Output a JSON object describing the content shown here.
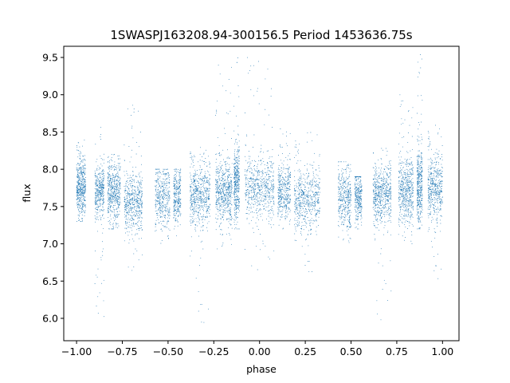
{
  "chart_data": {
    "type": "scatter",
    "title": "1SWASPJ163208.94-300156.5 Period 1453636.75s",
    "xlabel": "phase",
    "ylabel": "flux",
    "xlim": [
      -1.07,
      1.09
    ],
    "ylim": [
      5.7,
      9.65
    ],
    "xticks": [
      -1.0,
      -0.75,
      -0.5,
      -0.25,
      0.0,
      0.25,
      0.5,
      0.75,
      1.0
    ],
    "xtick_labels": [
      "−1.00",
      "−0.75",
      "−0.50",
      "−0.25",
      "0.00",
      "0.25",
      "0.50",
      "0.75",
      "1.00"
    ],
    "yticks": [
      6.0,
      6.5,
      7.0,
      7.5,
      8.0,
      8.5,
      9.0,
      9.5
    ],
    "ytick_labels": [
      "6.0",
      "6.5",
      "7.0",
      "7.5",
      "8.0",
      "8.5",
      "9.0",
      "9.5"
    ],
    "grid": false,
    "marker_color": "#1f77b4",
    "series": [
      {
        "clusters": [
          {
            "x": [
              -1.0,
              -0.95
            ],
            "center": 7.75,
            "spread": 0.18,
            "high": 8.4,
            "low": 7.3,
            "density": 1.0
          },
          {
            "x": [
              -0.9,
              -0.85
            ],
            "center": 7.7,
            "spread": 0.18,
            "high": 8.6,
            "low": 6.0,
            "density": 0.8
          },
          {
            "x": [
              -0.83,
              -0.76
            ],
            "center": 7.7,
            "spread": 0.2,
            "high": 8.2,
            "low": 7.2,
            "density": 1.0
          },
          {
            "x": [
              -0.74,
              -0.64
            ],
            "center": 7.55,
            "spread": 0.2,
            "high": 8.9,
            "low": 6.6,
            "density": 1.1
          },
          {
            "x": [
              -0.57,
              -0.49
            ],
            "center": 7.6,
            "spread": 0.2,
            "high": 8.0,
            "low": 7.0,
            "density": 0.8
          },
          {
            "x": [
              -0.47,
              -0.43
            ],
            "center": 7.65,
            "spread": 0.18,
            "high": 8.0,
            "low": 7.1,
            "density": 0.6
          },
          {
            "x": [
              -0.38,
              -0.27
            ],
            "center": 7.65,
            "spread": 0.2,
            "high": 8.3,
            "low": 5.9,
            "density": 1.2
          },
          {
            "x": [
              -0.24,
              -0.15
            ],
            "center": 7.7,
            "spread": 0.2,
            "high": 9.5,
            "low": 6.9,
            "density": 1.2
          },
          {
            "x": [
              -0.14,
              -0.11
            ],
            "center": 7.8,
            "spread": 0.25,
            "high": 9.55,
            "low": 7.2,
            "density": 0.8
          },
          {
            "x": [
              -0.08,
              0.08
            ],
            "center": 7.75,
            "spread": 0.2,
            "high": 9.5,
            "low": 6.6,
            "density": 1.3
          },
          {
            "x": [
              0.1,
              0.17
            ],
            "center": 7.7,
            "spread": 0.18,
            "high": 8.6,
            "low": 7.2,
            "density": 0.8
          },
          {
            "x": [
              0.19,
              0.33
            ],
            "center": 7.6,
            "spread": 0.2,
            "high": 8.5,
            "low": 6.6,
            "density": 1.2
          },
          {
            "x": [
              0.43,
              0.5
            ],
            "center": 7.6,
            "spread": 0.2,
            "high": 8.1,
            "low": 7.0,
            "density": 0.8
          },
          {
            "x": [
              0.52,
              0.56
            ],
            "center": 7.65,
            "spread": 0.18,
            "high": 7.9,
            "low": 7.2,
            "density": 0.6
          },
          {
            "x": [
              0.62,
              0.72
            ],
            "center": 7.65,
            "spread": 0.2,
            "high": 8.3,
            "low": 5.9,
            "density": 1.2
          },
          {
            "x": [
              0.76,
              0.84
            ],
            "center": 7.7,
            "spread": 0.22,
            "high": 9.0,
            "low": 6.9,
            "density": 1.1
          },
          {
            "x": [
              0.86,
              0.89
            ],
            "center": 7.8,
            "spread": 0.25,
            "high": 9.55,
            "low": 7.2,
            "density": 0.8
          },
          {
            "x": [
              0.92,
              1.0
            ],
            "center": 7.75,
            "spread": 0.2,
            "high": 8.6,
            "low": 6.5,
            "density": 1.0
          }
        ]
      }
    ]
  }
}
